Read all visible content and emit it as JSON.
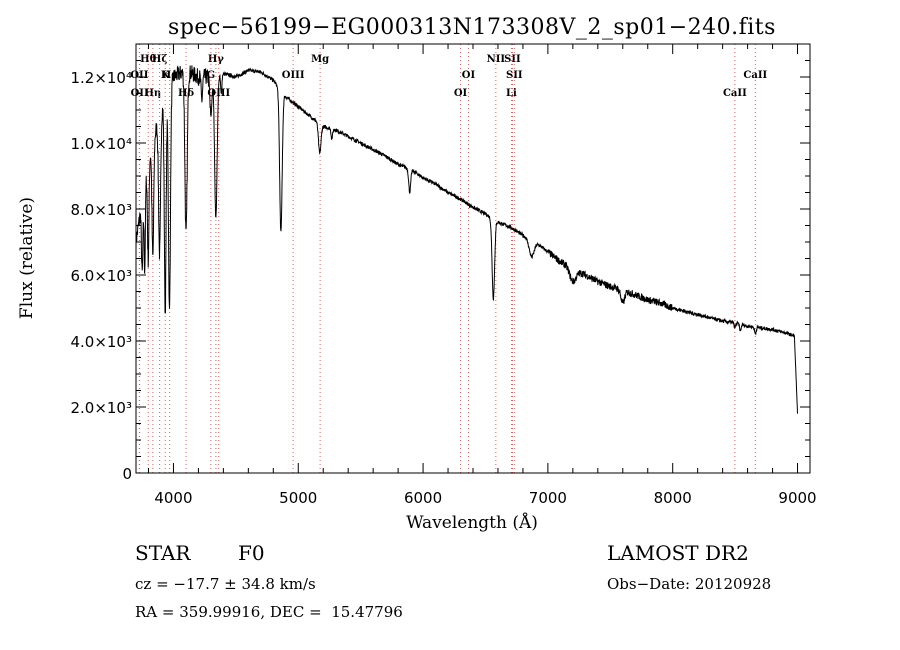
{
  "chart_data": {
    "type": "line",
    "title": "spec−56199−EG000313N173308V_2_sp01−240.fits",
    "xlabel": "Wavelength (Å)",
    "ylabel": "Flux (relative)",
    "xlim": [
      3700,
      9100
    ],
    "ylim": [
      0,
      13000
    ],
    "x_ticks": [
      {
        "value": 4000,
        "label": "4000"
      },
      {
        "value": 5000,
        "label": "5000"
      },
      {
        "value": 6000,
        "label": "6000"
      },
      {
        "value": 7000,
        "label": "7000"
      },
      {
        "value": 8000,
        "label": "8000"
      },
      {
        "value": 9000,
        "label": "9000"
      }
    ],
    "y_ticks": [
      {
        "value": 0,
        "label": "0"
      },
      {
        "value": 2000,
        "label": "2.0×10³"
      },
      {
        "value": 4000,
        "label": "4.0×10³"
      },
      {
        "value": 6000,
        "label": "6.0×10³"
      },
      {
        "value": 8000,
        "label": "8.0×10³"
      },
      {
        "value": 10000,
        "label": "1.0×10⁴"
      },
      {
        "value": 12000,
        "label": "1.2×10⁴"
      }
    ],
    "grid": false,
    "line_color": "#000000",
    "marker_color": "#cc6666",
    "spectrum": {
      "continuum": [
        [
          3700,
          7000
        ],
        [
          3800,
          9500
        ],
        [
          3900,
          11000
        ],
        [
          4000,
          12000
        ],
        [
          4100,
          12200
        ],
        [
          4200,
          12000
        ],
        [
          4300,
          12000
        ],
        [
          4400,
          12100
        ],
        [
          4500,
          12000
        ],
        [
          4600,
          12200
        ],
        [
          4700,
          12150
        ],
        [
          4800,
          11900
        ],
        [
          4900,
          11400
        ],
        [
          5000,
          11100
        ],
        [
          5100,
          10800
        ],
        [
          5200,
          10500
        ],
        [
          5300,
          10400
        ],
        [
          5400,
          10200
        ],
        [
          5500,
          10000
        ],
        [
          5600,
          9800
        ],
        [
          5700,
          9600
        ],
        [
          5800,
          9350
        ],
        [
          5900,
          9200
        ],
        [
          6000,
          8950
        ],
        [
          6100,
          8750
        ],
        [
          6200,
          8500
        ],
        [
          6300,
          8300
        ],
        [
          6400,
          8050
        ],
        [
          6500,
          7850
        ],
        [
          6600,
          7600
        ],
        [
          6700,
          7450
        ],
        [
          6800,
          7200
        ],
        [
          6900,
          7000
        ],
        [
          7000,
          6700
        ],
        [
          7100,
          6400
        ],
        [
          7200,
          6200
        ],
        [
          7300,
          6000
        ],
        [
          7400,
          5800
        ],
        [
          7500,
          5650
        ],
        [
          7600,
          5550
        ],
        [
          7700,
          5400
        ],
        [
          7800,
          5250
        ],
        [
          7900,
          5150
        ],
        [
          8000,
          5000
        ],
        [
          8100,
          4900
        ],
        [
          8200,
          4800
        ],
        [
          8300,
          4700
        ],
        [
          8400,
          4600
        ],
        [
          8500,
          4550
        ],
        [
          8600,
          4450
        ],
        [
          8700,
          4400
        ],
        [
          8800,
          4350
        ],
        [
          8900,
          4250
        ],
        [
          8980,
          4150
        ]
      ],
      "absorption": [
        {
          "center": 3750,
          "depth": 2200,
          "width": 6
        },
        {
          "center": 3770,
          "depth": 2600,
          "width": 5
        },
        {
          "center": 3798,
          "depth": 3000,
          "width": 6
        },
        {
          "center": 3835,
          "depth": 3500,
          "width": 7
        },
        {
          "center": 3889,
          "depth": 4200,
          "width": 8
        },
        {
          "center": 3934,
          "depth": 6500,
          "width": 7
        },
        {
          "center": 3968,
          "depth": 6800,
          "width": 8
        },
        {
          "center": 4101,
          "depth": 5000,
          "width": 9
        },
        {
          "center": 4227,
          "depth": 700,
          "width": 6
        },
        {
          "center": 4300,
          "depth": 1200,
          "width": 8
        },
        {
          "center": 4340,
          "depth": 4300,
          "width": 10
        },
        {
          "center": 4383,
          "depth": 600,
          "width": 5
        },
        {
          "center": 4861,
          "depth": 4300,
          "width": 10
        },
        {
          "center": 5172,
          "depth": 900,
          "width": 10
        },
        {
          "center": 5269,
          "depth": 300,
          "width": 6
        },
        {
          "center": 5893,
          "depth": 700,
          "width": 8
        },
        {
          "center": 6563,
          "depth": 2400,
          "width": 10
        },
        {
          "center": 6870,
          "depth": 500,
          "width": 20
        },
        {
          "center": 7200,
          "depth": 400,
          "width": 25
        },
        {
          "center": 7600,
          "depth": 400,
          "width": 15
        },
        {
          "center": 8498,
          "depth": 150,
          "width": 6
        },
        {
          "center": 8542,
          "depth": 200,
          "width": 6
        },
        {
          "center": 8662,
          "depth": 200,
          "width": 6
        }
      ],
      "drop": {
        "start": 8975,
        "end": 9000,
        "value": 1800
      }
    },
    "line_markers": [
      {
        "label": "Hθ",
        "wavelength": 3798,
        "row": 0
      },
      {
        "label": "OII",
        "wavelength": 3727,
        "row": 1
      },
      {
        "label": "OII",
        "wavelength": 3729,
        "row": 2
      },
      {
        "label": "Hη",
        "wavelength": 3835,
        "row": 2
      },
      {
        "label": "Hζ",
        "wavelength": 3889,
        "row": 0
      },
      {
        "label": "He",
        "wavelength": 3970,
        "row": 1
      },
      {
        "label": "K",
        "wavelength": 3934,
        "row": 1
      },
      {
        "label": "Hδ",
        "wavelength": 4101,
        "row": 2
      },
      {
        "label": "Hγ",
        "wavelength": 4340,
        "row": 0
      },
      {
        "label": "G",
        "wavelength": 4300,
        "row": 1
      },
      {
        "label": "OIII",
        "wavelength": 4363,
        "row": 2
      },
      {
        "label": "OIII",
        "wavelength": 4959,
        "row": 1
      },
      {
        "label": "Mg",
        "wavelength": 5175,
        "row": 0
      },
      {
        "label": "OI",
        "wavelength": 6300,
        "row": 2
      },
      {
        "label": "OI",
        "wavelength": 6364,
        "row": 1
      },
      {
        "label": "NII",
        "wavelength": 6583,
        "row": 0
      },
      {
        "label": "SII",
        "wavelength": 6716,
        "row": 0
      },
      {
        "label": "SII",
        "wavelength": 6731,
        "row": 1
      },
      {
        "label": "Li",
        "wavelength": 6708,
        "row": 2
      },
      {
        "label": "CaII",
        "wavelength": 8498,
        "row": 2
      },
      {
        "label": "CaII",
        "wavelength": 8662,
        "row": 1
      }
    ]
  },
  "info": {
    "class_label": "STAR",
    "subclass": "F0",
    "cz": "cz = −17.7 ± 34.8 km/s",
    "radec": "RA = 359.99916, DEC =  15.47796",
    "survey": "LAMOST DR2",
    "obs_date": "Obs−Date: 20120928"
  }
}
